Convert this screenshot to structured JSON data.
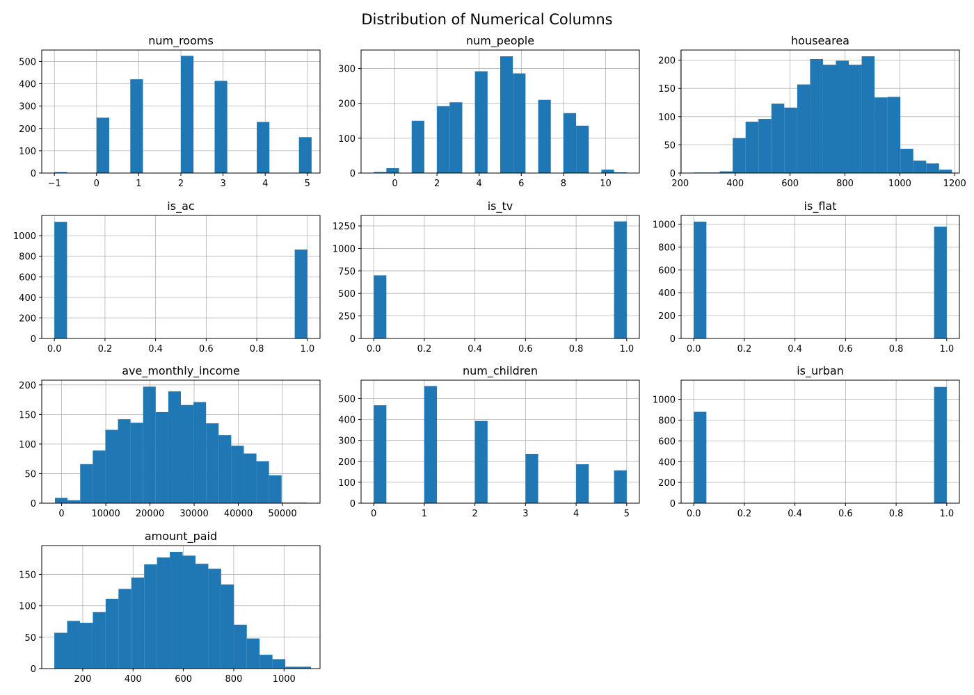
{
  "figure": {
    "title": "Distribution of Numerical Columns",
    "bar_color": "#1f77b4",
    "grid_color": "#b0b0b0"
  },
  "chart_data": [
    {
      "type": "bar",
      "title": "num_rooms",
      "xlim": [
        -1.3,
        5.3
      ],
      "ylim": [
        0,
        551
      ],
      "xticks": [
        -1,
        0,
        1,
        2,
        3,
        4,
        5
      ],
      "xtick_labels": [
        "−1",
        "0",
        "1",
        "2",
        "3",
        "4",
        "5"
      ],
      "yticks": [
        0,
        100,
        200,
        300,
        400,
        500
      ],
      "ytick_labels": [
        "0",
        "100",
        "200",
        "300",
        "400",
        "500"
      ],
      "bins": [
        [
          -1.0,
          -0.7,
          4
        ],
        [
          0.0,
          0.3,
          248
        ],
        [
          0.8,
          1.1,
          420
        ],
        [
          2.0,
          2.3,
          525
        ],
        [
          2.8,
          3.1,
          413
        ],
        [
          3.8,
          4.1,
          229
        ],
        [
          4.8,
          5.1,
          161
        ]
      ]
    },
    {
      "type": "bar",
      "title": "num_people",
      "xlim": [
        -1.6,
        11.6
      ],
      "ylim": [
        0,
        353
      ],
      "xticks": [
        0,
        2,
        4,
        6,
        8,
        10
      ],
      "xtick_labels": [
        "0",
        "2",
        "4",
        "6",
        "8",
        "10"
      ],
      "yticks": [
        0,
        100,
        200,
        300
      ],
      "ytick_labels": [
        "0",
        "100",
        "200",
        "300"
      ],
      "bins": [
        [
          -1.0,
          -0.4,
          3
        ],
        [
          -0.4,
          0.2,
          14
        ],
        [
          0.8,
          1.4,
          150
        ],
        [
          2.0,
          2.6,
          192
        ],
        [
          2.6,
          3.2,
          203
        ],
        [
          3.8,
          4.4,
          292
        ],
        [
          5.0,
          5.6,
          335
        ],
        [
          5.6,
          6.2,
          286
        ],
        [
          6.8,
          7.4,
          210
        ],
        [
          8.0,
          8.6,
          172
        ],
        [
          8.6,
          9.2,
          136
        ],
        [
          9.8,
          10.4,
          10
        ],
        [
          10.4,
          11.0,
          2
        ]
      ]
    },
    {
      "type": "bar",
      "title": "housearea",
      "xlim": [
        203,
        1217
      ],
      "ylim": [
        0,
        218
      ],
      "xticks": [
        200,
        400,
        600,
        800,
        1000,
        1200
      ],
      "xtick_labels": [
        "200",
        "400",
        "600",
        "800",
        "1000",
        "1200"
      ],
      "yticks": [
        0,
        50,
        100,
        150,
        200
      ],
      "ytick_labels": [
        "0",
        "50",
        "100",
        "150",
        "200"
      ],
      "bins": [
        [
          250,
          297,
          1
        ],
        [
          297,
          344,
          1
        ],
        [
          344,
          391,
          3
        ],
        [
          391,
          438,
          62
        ],
        [
          438,
          485,
          91
        ],
        [
          485,
          532,
          96
        ],
        [
          532,
          579,
          123
        ],
        [
          579,
          626,
          116
        ],
        [
          626,
          673,
          157
        ],
        [
          673,
          720,
          202
        ],
        [
          720,
          767,
          192
        ],
        [
          767,
          814,
          199
        ],
        [
          814,
          861,
          192
        ],
        [
          861,
          908,
          207
        ],
        [
          908,
          955,
          134
        ],
        [
          955,
          1002,
          135
        ],
        [
          1002,
          1049,
          43
        ],
        [
          1049,
          1096,
          22
        ],
        [
          1096,
          1143,
          17
        ],
        [
          1143,
          1190,
          6
        ]
      ]
    },
    {
      "type": "bar",
      "title": "is_ac",
      "xlim": [
        -0.05,
        1.05
      ],
      "ylim": [
        0,
        1197
      ],
      "xticks": [
        0,
        0.2,
        0.4,
        0.6,
        0.8,
        1.0
      ],
      "xtick_labels": [
        "0.0",
        "0.2",
        "0.4",
        "0.6",
        "0.8",
        "1.0"
      ],
      "yticks": [
        0,
        200,
        400,
        600,
        800,
        1000
      ],
      "ytick_labels": [
        "0",
        "200",
        "400",
        "600",
        "800",
        "1000"
      ],
      "bins": [
        [
          0.0,
          0.05,
          1135
        ],
        [
          0.95,
          1.0,
          865
        ]
      ]
    },
    {
      "type": "bar",
      "title": "is_tv",
      "xlim": [
        -0.05,
        1.05
      ],
      "ylim": [
        0,
        1366
      ],
      "xticks": [
        0,
        0.2,
        0.4,
        0.6,
        0.8,
        1.0
      ],
      "xtick_labels": [
        "0.0",
        "0.2",
        "0.4",
        "0.6",
        "0.8",
        "1.0"
      ],
      "yticks": [
        0,
        250,
        500,
        750,
        1000,
        1250
      ],
      "ytick_labels": [
        "0",
        "250",
        "500",
        "750",
        "1000",
        "1250"
      ],
      "bins": [
        [
          0.0,
          0.05,
          700
        ],
        [
          0.95,
          1.0,
          1300
        ]
      ]
    },
    {
      "type": "bar",
      "title": "is_flat",
      "xlim": [
        -0.05,
        1.05
      ],
      "ylim": [
        0,
        1076
      ],
      "xticks": [
        0,
        0.2,
        0.4,
        0.6,
        0.8,
        1.0
      ],
      "xtick_labels": [
        "0.0",
        "0.2",
        "0.4",
        "0.6",
        "0.8",
        "1.0"
      ],
      "yticks": [
        0,
        200,
        400,
        600,
        800,
        1000
      ],
      "ytick_labels": [
        "0",
        "200",
        "400",
        "600",
        "800",
        "1000"
      ],
      "bins": [
        [
          0.0,
          0.05,
          1022
        ],
        [
          0.95,
          1.0,
          978
        ]
      ]
    },
    {
      "type": "bar",
      "title": "ave_monthly_income",
      "xlim": [
        -4500,
        58500
      ],
      "ylim": [
        0,
        208
      ],
      "xticks": [
        0,
        10000,
        20000,
        30000,
        40000,
        50000
      ],
      "xtick_labels": [
        "0",
        "10000",
        "20000",
        "30000",
        "40000",
        "50000"
      ],
      "yticks": [
        0,
        50,
        100,
        150,
        200
      ],
      "ytick_labels": [
        "0",
        "50",
        "100",
        "150",
        "200"
      ],
      "bins": [
        [
          -1500,
          1350,
          9
        ],
        [
          1350,
          4200,
          5
        ],
        [
          4200,
          7050,
          66
        ],
        [
          7050,
          9900,
          89
        ],
        [
          9900,
          12750,
          124
        ],
        [
          12750,
          15600,
          142
        ],
        [
          15600,
          18450,
          136
        ],
        [
          18450,
          21300,
          197
        ],
        [
          21300,
          24150,
          154
        ],
        [
          24150,
          27000,
          189
        ],
        [
          27000,
          29850,
          166
        ],
        [
          29850,
          32700,
          171
        ],
        [
          32700,
          35550,
          135
        ],
        [
          35550,
          38400,
          115
        ],
        [
          38400,
          41250,
          97
        ],
        [
          41250,
          44100,
          84
        ],
        [
          44100,
          46950,
          71
        ],
        [
          46950,
          49800,
          47
        ],
        [
          49800,
          52650,
          1
        ],
        [
          52650,
          55500,
          1
        ]
      ]
    },
    {
      "type": "bar",
      "title": "num_children",
      "xlim": [
        -0.25,
        5.25
      ],
      "ylim": [
        0,
        588
      ],
      "xticks": [
        0,
        1,
        2,
        3,
        4,
        5
      ],
      "xtick_labels": [
        "0",
        "1",
        "2",
        "3",
        "4",
        "5"
      ],
      "yticks": [
        0,
        100,
        200,
        300,
        400,
        500
      ],
      "ytick_labels": [
        "0",
        "100",
        "200",
        "300",
        "400",
        "500"
      ],
      "bins": [
        [
          0.0,
          0.25,
          468
        ],
        [
          1.0,
          1.25,
          560
        ],
        [
          2.0,
          2.25,
          393
        ],
        [
          3.0,
          3.25,
          236
        ],
        [
          4.0,
          4.25,
          186
        ],
        [
          4.75,
          5.0,
          157
        ]
      ]
    },
    {
      "type": "bar",
      "title": "is_urban",
      "xlim": [
        -0.05,
        1.05
      ],
      "ylim": [
        0,
        1185
      ],
      "xticks": [
        0,
        0.2,
        0.4,
        0.6,
        0.8,
        1.0
      ],
      "xtick_labels": [
        "0.0",
        "0.2",
        "0.4",
        "0.6",
        "0.8",
        "1.0"
      ],
      "yticks": [
        0,
        200,
        400,
        600,
        800,
        1000
      ],
      "ytick_labels": [
        "0",
        "200",
        "400",
        "600",
        "800",
        "1000"
      ],
      "bins": [
        [
          0.0,
          0.05,
          880
        ],
        [
          0.95,
          1.0,
          1120
        ]
      ]
    },
    {
      "type": "bar",
      "title": "amount_paid",
      "xlim": [
        37,
        1143
      ],
      "ylim": [
        0,
        196
      ],
      "xticks": [
        200,
        400,
        600,
        800,
        1000
      ],
      "xtick_labels": [
        "200",
        "400",
        "600",
        "800",
        "1000"
      ],
      "yticks": [
        0,
        50,
        100,
        150
      ],
      "ytick_labels": [
        "0",
        "50",
        "100",
        "150"
      ],
      "bins": [
        [
          87,
          138,
          57
        ],
        [
          138,
          189,
          76
        ],
        [
          189,
          240,
          73
        ],
        [
          240,
          291,
          90
        ],
        [
          291,
          342,
          111
        ],
        [
          342,
          393,
          127
        ],
        [
          393,
          444,
          145
        ],
        [
          444,
          495,
          166
        ],
        [
          495,
          546,
          177
        ],
        [
          546,
          597,
          186
        ],
        [
          597,
          648,
          180
        ],
        [
          648,
          699,
          167
        ],
        [
          699,
          750,
          159
        ],
        [
          750,
          801,
          134
        ],
        [
          801,
          852,
          70
        ],
        [
          852,
          903,
          48
        ],
        [
          903,
          954,
          22
        ],
        [
          954,
          1005,
          15
        ],
        [
          1005,
          1056,
          3
        ],
        [
          1056,
          1107,
          3
        ]
      ]
    }
  ]
}
